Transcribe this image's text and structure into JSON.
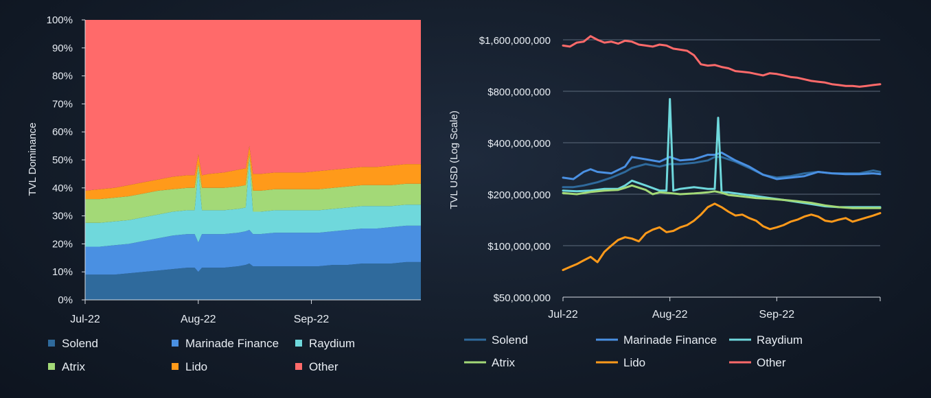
{
  "colors": {
    "Solend": "#2f6a9c",
    "Marinade Finance": "#4a90e2",
    "Raydium": "#6fd8dc",
    "Atrix": "#a3d977",
    "Lido": "#ff9a1a",
    "Other": "#ff6a6a"
  },
  "chart_data": [
    {
      "type": "area",
      "stacked": true,
      "title": "",
      "ylabel": "TVL Dominance",
      "xlabel": "",
      "ylim": [
        0,
        100
      ],
      "y_ticks": [
        "0%",
        "10%",
        "20%",
        "30%",
        "40%",
        "50%",
        "60%",
        "70%",
        "80%",
        "90%",
        "100%"
      ],
      "x_ticks": [
        "Jul-22",
        "Aug-22",
        "Sep-22"
      ],
      "x_tick_days": [
        0,
        31,
        62
      ],
      "x_days": [
        0,
        92
      ],
      "x": [
        0,
        4,
        8,
        12,
        16,
        20,
        24,
        28,
        30,
        31,
        32,
        34,
        38,
        42,
        44,
        45,
        46,
        48,
        52,
        56,
        60,
        64,
        68,
        72,
        76,
        80,
        84,
        88,
        92
      ],
      "series": [
        {
          "name": "Solend",
          "values": [
            9,
            9,
            9,
            9.5,
            10,
            10.5,
            11,
            11.5,
            11.5,
            10,
            11.5,
            11.5,
            11.5,
            12,
            12.5,
            13,
            12,
            12,
            12,
            12,
            12,
            12,
            12.5,
            12.5,
            13,
            13,
            13,
            13.5,
            13.5
          ]
        },
        {
          "name": "Marinade Finance",
          "values": [
            10,
            10,
            10.5,
            10.5,
            11,
            11.5,
            12,
            12,
            12,
            10.5,
            12,
            12,
            12,
            12,
            12,
            12,
            11.5,
            11.5,
            12,
            12,
            12,
            12,
            12,
            12.5,
            12.5,
            12.5,
            13,
            13,
            13
          ]
        },
        {
          "name": "Raydium",
          "values": [
            8.5,
            8.5,
            8.5,
            8.5,
            8.5,
            8.5,
            8.5,
            8.5,
            8.5,
            26,
            8.5,
            8.5,
            8.5,
            8.5,
            8.5,
            25,
            8,
            8,
            8,
            8,
            8,
            8,
            8,
            8,
            8,
            8,
            7.5,
            7.5,
            7.5
          ]
        },
        {
          "name": "Atrix",
          "values": [
            8.5,
            8.5,
            8.5,
            8.5,
            8.5,
            8.5,
            8,
            8,
            8,
            2,
            8,
            8,
            8,
            8,
            8,
            2,
            7.5,
            7.5,
            7.5,
            7.5,
            7.5,
            7.5,
            7.5,
            7.5,
            7.5,
            7.5,
            7.5,
            7.5,
            7.5
          ]
        },
        {
          "name": "Lido",
          "values": [
            3,
            3.5,
            3.5,
            4,
            4,
            4,
            4.5,
            4.5,
            4.5,
            3.5,
            4.5,
            5,
            5.5,
            6,
            6,
            3,
            6,
            6,
            6,
            6,
            6,
            6.5,
            6.5,
            6.5,
            6.5,
            6.5,
            7,
            7,
            7
          ]
        },
        {
          "name": "Other",
          "values": [
            61,
            60.5,
            60,
            59,
            58,
            57,
            56,
            55.5,
            55.5,
            48,
            55.5,
            55,
            54.5,
            53.5,
            53,
            45,
            55,
            55,
            54.5,
            54.5,
            54.5,
            54,
            53.5,
            53,
            52.5,
            52.5,
            52,
            51.5,
            51.5
          ]
        }
      ],
      "legend": {
        "position": "bottom",
        "entries": [
          "Solend",
          "Marinade Finance",
          "Raydium",
          "Atrix",
          "Lido",
          "Other"
        ]
      }
    },
    {
      "type": "line",
      "title": "",
      "ylabel": "TVL USD (Log Scale)",
      "xlabel": "",
      "yscale": "log",
      "ylim": [
        50000000,
        1600000000
      ],
      "y_ticks": [
        {
          "label": "$50,000,000",
          "value": 50000000
        },
        {
          "label": "$100,000,000",
          "value": 100000000
        },
        {
          "label": "$200,000,000",
          "value": 200000000
        },
        {
          "label": "$400,000,000",
          "value": 400000000
        },
        {
          "label": "$800,000,000",
          "value": 800000000
        },
        {
          "label": "$1,600,000,000",
          "value": 1600000000
        }
      ],
      "x_ticks": [
        "Jul-22",
        "Aug-22",
        "Sep-22"
      ],
      "x_tick_days": [
        0,
        31,
        62
      ],
      "x_days": [
        0,
        92
      ],
      "series": [
        {
          "name": "Solend",
          "x": [
            0,
            3,
            6,
            10,
            14,
            18,
            20,
            24,
            28,
            31,
            34,
            38,
            42,
            44,
            46,
            50,
            54,
            58,
            62,
            66,
            70,
            74,
            78,
            82,
            86,
            90,
            92
          ],
          "values": [
            220,
            220,
            225,
            235,
            250,
            270,
            285,
            300,
            290,
            300,
            300,
            305,
            315,
            330,
            330,
            310,
            285,
            260,
            250,
            255,
            265,
            270,
            265,
            265,
            265,
            275,
            270
          ]
        },
        {
          "name": "Marinade Finance",
          "x": [
            0,
            3,
            6,
            8,
            10,
            14,
            18,
            20,
            24,
            28,
            31,
            34,
            38,
            42,
            44,
            46,
            50,
            54,
            58,
            62,
            66,
            70,
            74,
            78,
            82,
            86,
            90,
            92
          ],
          "values": [
            250,
            245,
            270,
            280,
            270,
            265,
            290,
            330,
            320,
            310,
            330,
            315,
            320,
            340,
            340,
            350,
            315,
            290,
            260,
            245,
            250,
            255,
            270,
            265,
            262,
            262,
            265,
            262
          ]
        },
        {
          "name": "Raydium",
          "x": [
            0,
            4,
            8,
            12,
            16,
            18,
            20,
            24,
            28,
            30,
            31,
            32,
            34,
            38,
            42,
            44,
            45,
            46,
            48,
            52,
            56,
            60,
            64,
            68,
            72,
            76,
            80,
            84,
            88,
            92
          ],
          "values": [
            210,
            208,
            210,
            215,
            215,
            225,
            240,
            225,
            210,
            210,
            720,
            210,
            215,
            220,
            215,
            215,
            560,
            205,
            205,
            200,
            195,
            190,
            185,
            180,
            175,
            170,
            168,
            168,
            168,
            168
          ]
        },
        {
          "name": "Atrix",
          "x": [
            0,
            4,
            8,
            12,
            16,
            18,
            20,
            24,
            26,
            28,
            31,
            34,
            38,
            42,
            44,
            46,
            48,
            52,
            56,
            60,
            64,
            68,
            72,
            76,
            80,
            84,
            88,
            92
          ],
          "values": [
            203,
            200,
            206,
            210,
            212,
            218,
            225,
            212,
            200,
            205,
            203,
            200,
            202,
            205,
            208,
            204,
            198,
            194,
            190,
            188,
            185,
            182,
            178,
            172,
            168,
            166,
            166,
            166
          ]
        },
        {
          "name": "Lido",
          "x": [
            0,
            2,
            4,
            6,
            8,
            10,
            12,
            14,
            16,
            18,
            20,
            22,
            24,
            26,
            28,
            30,
            32,
            34,
            36,
            38,
            40,
            42,
            44,
            46,
            48,
            50,
            52,
            54,
            56,
            58,
            60,
            62,
            64,
            66,
            68,
            70,
            72,
            74,
            76,
            78,
            80,
            82,
            84,
            86,
            88,
            90,
            92
          ],
          "values": [
            72,
            75,
            78,
            82,
            86,
            80,
            92,
            100,
            108,
            112,
            110,
            106,
            118,
            124,
            128,
            120,
            122,
            128,
            132,
            140,
            152,
            168,
            176,
            168,
            158,
            150,
            152,
            145,
            140,
            130,
            125,
            128,
            132,
            138,
            142,
            148,
            152,
            148,
            140,
            138,
            142,
            145,
            138,
            142,
            146,
            150,
            155
          ]
        },
        {
          "name": "Other",
          "x": [
            0,
            2,
            4,
            6,
            8,
            10,
            12,
            14,
            16,
            18,
            20,
            22,
            24,
            26,
            28,
            30,
            32,
            34,
            36,
            38,
            40,
            42,
            44,
            46,
            48,
            50,
            52,
            54,
            56,
            58,
            60,
            62,
            64,
            66,
            68,
            70,
            72,
            74,
            76,
            78,
            80,
            82,
            84,
            86,
            88,
            90,
            92
          ],
          "values": [
            1480,
            1460,
            1540,
            1560,
            1680,
            1600,
            1540,
            1560,
            1520,
            1580,
            1560,
            1500,
            1480,
            1460,
            1500,
            1480,
            1420,
            1400,
            1380,
            1300,
            1150,
            1130,
            1140,
            1110,
            1090,
            1050,
            1040,
            1030,
            1010,
            990,
            1020,
            1010,
            990,
            970,
            960,
            940,
            920,
            910,
            900,
            880,
            870,
            860,
            860,
            850,
            860,
            870,
            880
          ]
        }
      ],
      "legend": {
        "position": "bottom",
        "entries": [
          "Solend",
          "Marinade Finance",
          "Raydium",
          "Atrix",
          "Lido",
          "Other"
        ]
      }
    }
  ]
}
